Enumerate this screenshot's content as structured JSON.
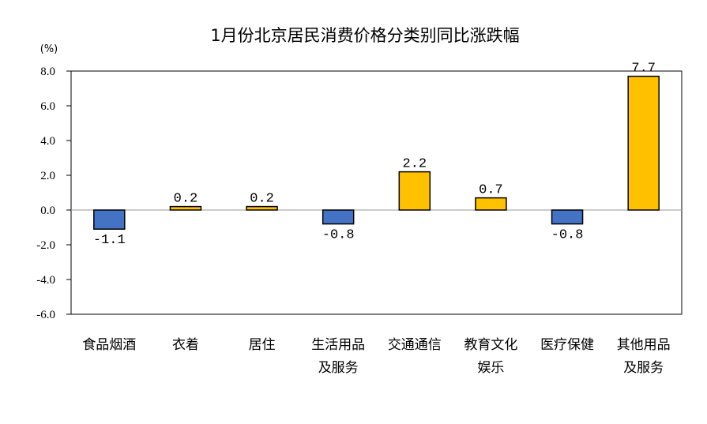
{
  "chart_data": {
    "type": "bar",
    "title": "1月份北京居民消费价格分类别同比涨跌幅",
    "ylabel": "(%)",
    "xlabel": "",
    "ylim": [
      -6.0,
      8.0
    ],
    "yticks": [
      "8.0",
      "6.0",
      "4.0",
      "2.0",
      "0.0",
      "-2.0",
      "-4.0",
      "-6.0"
    ],
    "ytick_values": [
      8,
      6,
      4,
      2,
      0,
      -2,
      -4,
      -6
    ],
    "categories": [
      [
        "食品烟酒"
      ],
      [
        "衣着"
      ],
      [
        "居住"
      ],
      [
        "生活用品",
        "及服务"
      ],
      [
        "交通通信"
      ],
      [
        "教育文化",
        "娱乐"
      ],
      [
        "医疗保健"
      ],
      [
        "其他用品",
        "及服务"
      ]
    ],
    "values": [
      -1.1,
      0.2,
      0.2,
      -0.8,
      2.2,
      0.7,
      -0.8,
      7.7
    ],
    "value_labels": [
      "-1.1",
      "0.2",
      "0.2",
      "-0.8",
      "2.2",
      "0.7",
      "-0.8",
      "7.7"
    ],
    "colors": {
      "positive": "#FFC000",
      "negative": "#4472C4",
      "outline": "#000000"
    },
    "grid": false,
    "legend": "none"
  }
}
